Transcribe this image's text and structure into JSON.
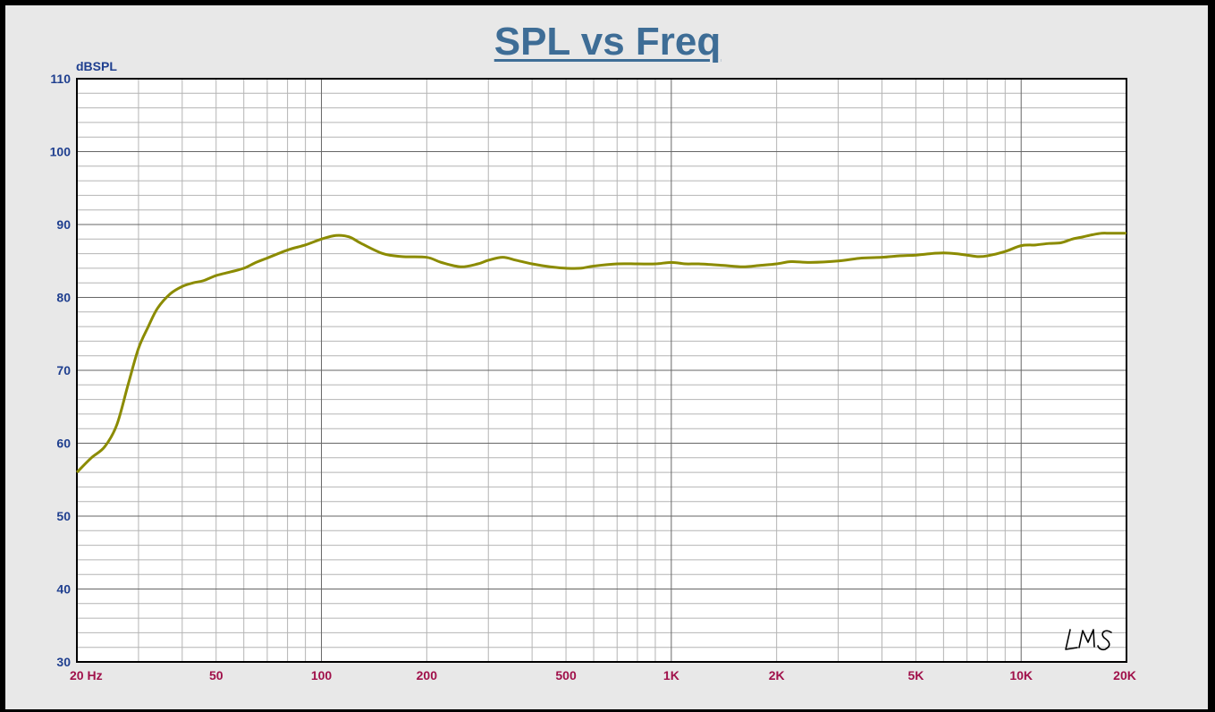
{
  "chart_data": {
    "type": "line",
    "title": "SPL vs Freq",
    "ylabel": "dBSPL",
    "xlabel": "",
    "xscale": "log",
    "xlim": [
      20,
      20000
    ],
    "ylim": [
      30,
      110
    ],
    "grid": true,
    "yticks": [
      30,
      40,
      50,
      60,
      70,
      80,
      90,
      100,
      110
    ],
    "xticks": [
      {
        "value": 20,
        "label": "20  Hz"
      },
      {
        "value": 50,
        "label": "50"
      },
      {
        "value": 100,
        "label": "100"
      },
      {
        "value": 200,
        "label": "200"
      },
      {
        "value": 500,
        "label": "500"
      },
      {
        "value": 1000,
        "label": "1K"
      },
      {
        "value": 2000,
        "label": "2K"
      },
      {
        "value": 5000,
        "label": "5K"
      },
      {
        "value": 10000,
        "label": "10K"
      },
      {
        "value": 20000,
        "label": "20K"
      }
    ],
    "series": [
      {
        "color": "#8b8b00",
        "x": [
          20,
          22,
          24,
          26,
          28,
          30,
          32,
          34,
          37,
          40,
          43,
          46,
          50,
          55,
          60,
          65,
          70,
          80,
          90,
          100,
          110,
          120,
          130,
          150,
          170,
          200,
          220,
          250,
          280,
          300,
          330,
          360,
          400,
          450,
          500,
          550,
          600,
          700,
          800,
          900,
          1000,
          1100,
          1200,
          1400,
          1600,
          1800,
          2000,
          2200,
          2500,
          3000,
          3500,
          4000,
          4500,
          5000,
          5500,
          6000,
          6500,
          7000,
          7500,
          8000,
          9000,
          10000,
          11000,
          12000,
          13000,
          14000,
          15000,
          16000,
          17000,
          18000,
          20000
        ],
        "y": [
          56,
          58,
          59.5,
          62.5,
          68,
          73,
          76,
          78.5,
          80.5,
          81.5,
          82,
          82.3,
          83,
          83.5,
          84,
          84.8,
          85.4,
          86.5,
          87.2,
          88,
          88.5,
          88.3,
          87.4,
          86,
          85.6,
          85.5,
          84.8,
          84.2,
          84.6,
          85.1,
          85.5,
          85.1,
          84.6,
          84.2,
          84,
          84,
          84.3,
          84.6,
          84.6,
          84.6,
          84.8,
          84.6,
          84.6,
          84.4,
          84.2,
          84.4,
          84.6,
          84.9,
          84.8,
          85,
          85.4,
          85.5,
          85.7,
          85.8,
          86,
          86.1,
          86,
          85.8,
          85.6,
          85.7,
          86.3,
          87.1,
          87.2,
          87.4,
          87.5,
          88,
          88.3,
          88.6,
          88.8,
          88.8,
          88.8
        ]
      }
    ],
    "annotations": [
      "LMS"
    ]
  }
}
